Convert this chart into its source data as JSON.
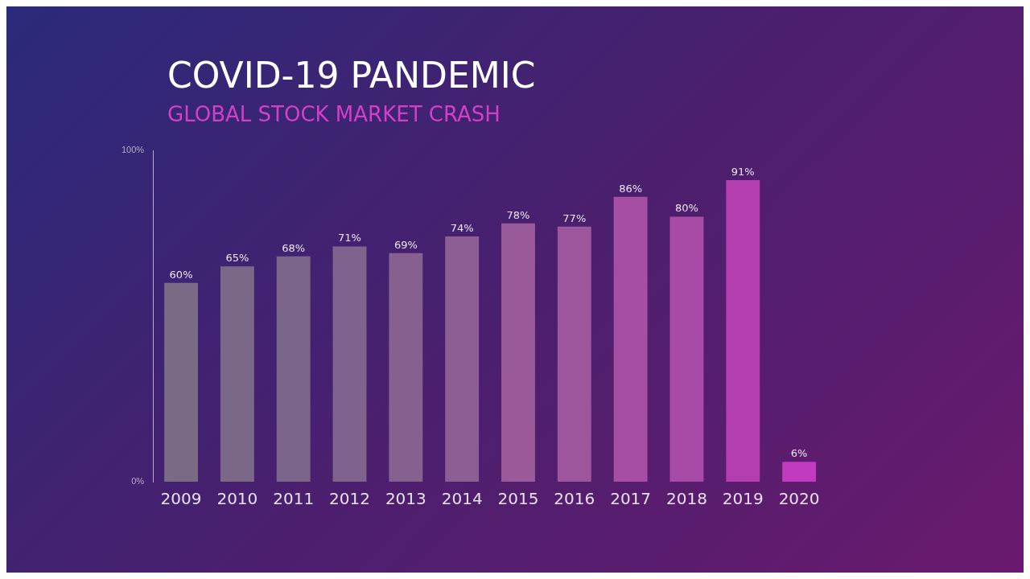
{
  "chart_data": {
    "type": "bar",
    "title": "COVID-19 PANDEMIC",
    "subtitle": "GLOBAL STOCK MARKET CRASH",
    "categories": [
      "2009",
      "2010",
      "2011",
      "2012",
      "2013",
      "2014",
      "2015",
      "2016",
      "2017",
      "2018",
      "2019",
      "2020"
    ],
    "values": [
      60,
      65,
      68,
      71,
      69,
      74,
      78,
      77,
      86,
      80,
      91,
      6
    ],
    "value_labels": [
      "60%",
      "65%",
      "68%",
      "71%",
      "69%",
      "74%",
      "78%",
      "77%",
      "86%",
      "80%",
      "91%",
      "6%"
    ],
    "colors": [
      "#7a6a86",
      "#7b6889",
      "#7c658a",
      "#80638c",
      "#86618f",
      "#8d5e93",
      "#9a5a9a",
      "#9d559c",
      "#a64ea4",
      "#a84ba6",
      "#b23eb0",
      "#c23ac0"
    ],
    "ylim": [
      0,
      100
    ],
    "yticks": [
      {
        "value": 0,
        "label": "0%"
      },
      {
        "value": 100,
        "label": "100%"
      }
    ],
    "grid": false,
    "legend": false
  }
}
